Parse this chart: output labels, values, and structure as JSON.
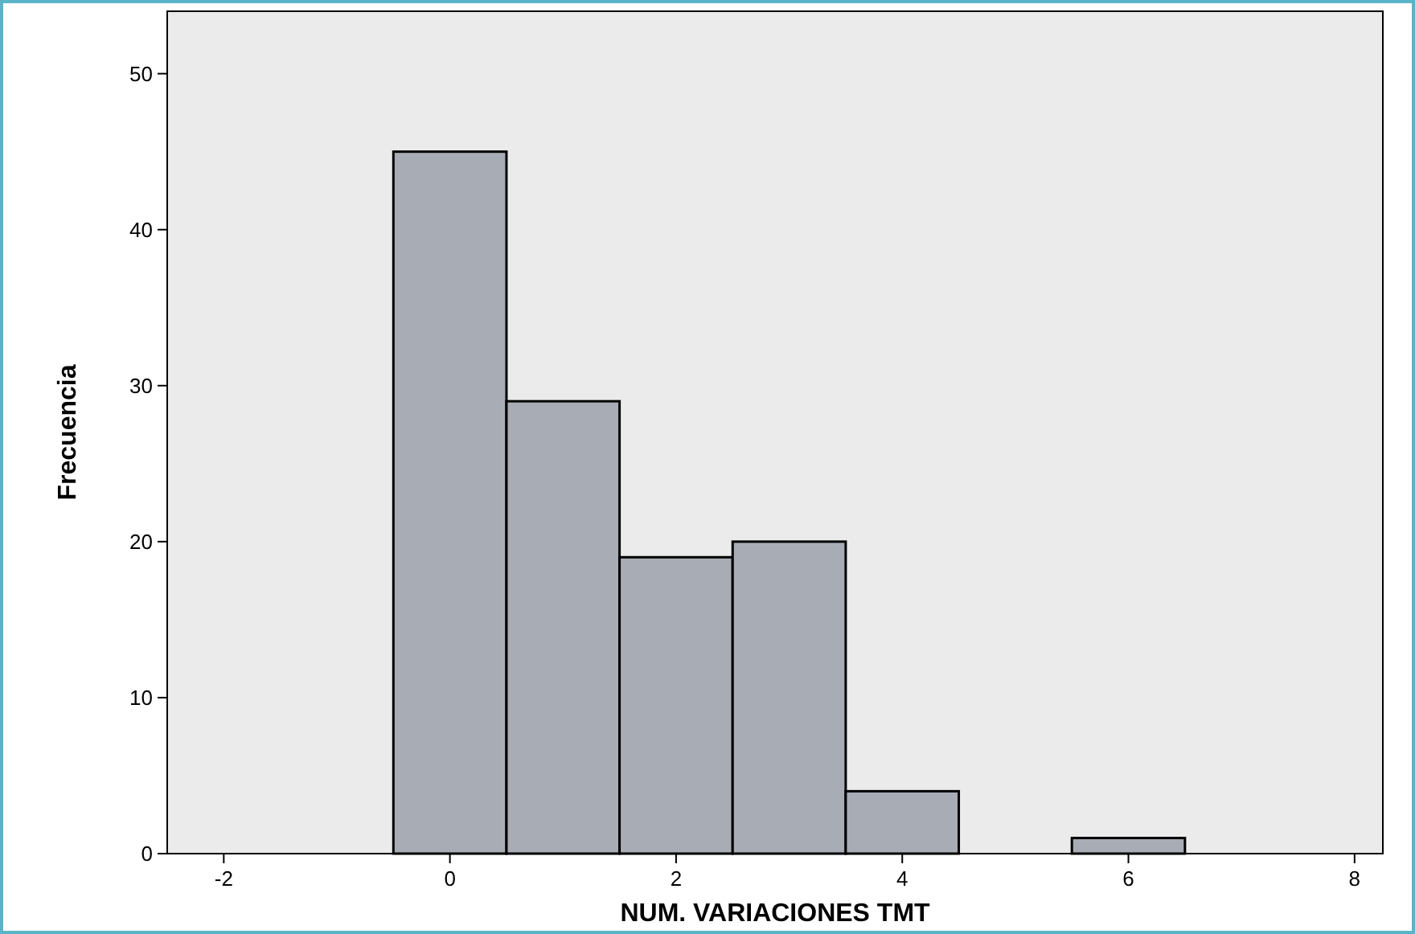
{
  "chart_data": {
    "type": "histogram",
    "xlabel": "NUM. VARIACIONES TMT",
    "ylabel": "Frecuencia",
    "bins": [
      -0.5,
      0.5,
      1.5,
      2.5,
      3.5,
      4.5,
      5.5,
      6.5
    ],
    "values": [
      45,
      29,
      19,
      20,
      4,
      0,
      1
    ],
    "color": "#a8acb4",
    "xlim": [
      -2.5,
      8.25
    ],
    "xticks": [
      -2,
      0,
      2,
      4,
      6,
      8
    ],
    "ylim": [
      0,
      54
    ],
    "yticks": [
      0,
      10,
      20,
      30,
      40,
      50
    ],
    "grid": false
  }
}
